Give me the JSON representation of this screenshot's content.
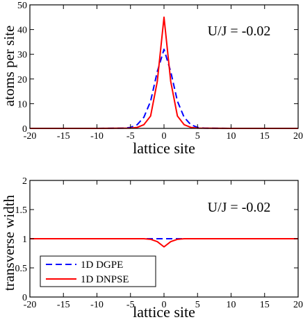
{
  "chart_data": [
    {
      "type": "line",
      "ylabel": "atoms per site",
      "xlabel": "lattice site",
      "annotation": "U/J = -0.02",
      "xlim": [
        -20,
        20
      ],
      "ylim": [
        0,
        50
      ],
      "xticks": [
        -20,
        -15,
        -10,
        -5,
        0,
        5,
        10,
        15,
        20
      ],
      "yticks": [
        0,
        10,
        20,
        30,
        40,
        50
      ],
      "x_tick_labels": [
        "-20",
        "-15",
        "-10",
        "-5",
        "0",
        "5",
        "10",
        "15",
        "20"
      ],
      "y_tick_labels": [
        "0",
        "10",
        "20",
        "30",
        "40",
        "50"
      ],
      "grid": false,
      "series": [
        {
          "name": "1D DGPE",
          "style": "dashed",
          "color": "#0000ff",
          "points": [
            [
              -20,
              0
            ],
            [
              -10,
              0
            ],
            [
              -6,
              0.1
            ],
            [
              -5,
              0.4
            ],
            [
              -4,
              1.5
            ],
            [
              -3,
              4.5
            ],
            [
              -2,
              11
            ],
            [
              -1,
              23
            ],
            [
              0,
              32
            ],
            [
              1,
              23
            ],
            [
              2,
              11
            ],
            [
              3,
              4.5
            ],
            [
              4,
              1.5
            ],
            [
              5,
              0.4
            ],
            [
              6,
              0.1
            ],
            [
              10,
              0
            ],
            [
              20,
              0
            ]
          ]
        },
        {
          "name": "1D DNPSE",
          "style": "solid",
          "color": "#ff0000",
          "points": [
            [
              -20,
              0
            ],
            [
              -10,
              0
            ],
            [
              -5,
              0.1
            ],
            [
              -4,
              0.4
            ],
            [
              -3,
              1.5
            ],
            [
              -2,
              5
            ],
            [
              -1,
              19
            ],
            [
              0,
              45
            ],
            [
              1,
              19
            ],
            [
              2,
              5
            ],
            [
              3,
              1.5
            ],
            [
              4,
              0.4
            ],
            [
              5,
              0.1
            ],
            [
              10,
              0
            ],
            [
              20,
              0
            ]
          ]
        }
      ]
    },
    {
      "type": "line",
      "ylabel": "transverse width",
      "xlabel": "lattice site",
      "annotation": "U/J = -0.02",
      "xlim": [
        -20,
        20
      ],
      "ylim": [
        0,
        2
      ],
      "xticks": [
        -20,
        -15,
        -10,
        -5,
        0,
        5,
        10,
        15,
        20
      ],
      "yticks": [
        0,
        0.5,
        1,
        1.5,
        2
      ],
      "x_tick_labels": [
        "-20",
        "-15",
        "-10",
        "-5",
        "0",
        "5",
        "10",
        "15",
        "20"
      ],
      "y_tick_labels": [
        "0",
        "0.5",
        "1",
        "1.5",
        "2"
      ],
      "grid": false,
      "legend": "bottom-left",
      "series": [
        {
          "name": "1D DGPE",
          "style": "dashed",
          "color": "#0000ff",
          "points": [
            [
              -20,
              1
            ],
            [
              20,
              1
            ]
          ]
        },
        {
          "name": "1D DNPSE",
          "style": "solid",
          "color": "#ff0000",
          "points": [
            [
              -20,
              1
            ],
            [
              -3,
              1
            ],
            [
              -2,
              0.99
            ],
            [
              -1,
              0.95
            ],
            [
              0,
              0.86
            ],
            [
              1,
              0.95
            ],
            [
              2,
              0.99
            ],
            [
              3,
              1
            ],
            [
              20,
              1
            ]
          ]
        }
      ]
    }
  ]
}
